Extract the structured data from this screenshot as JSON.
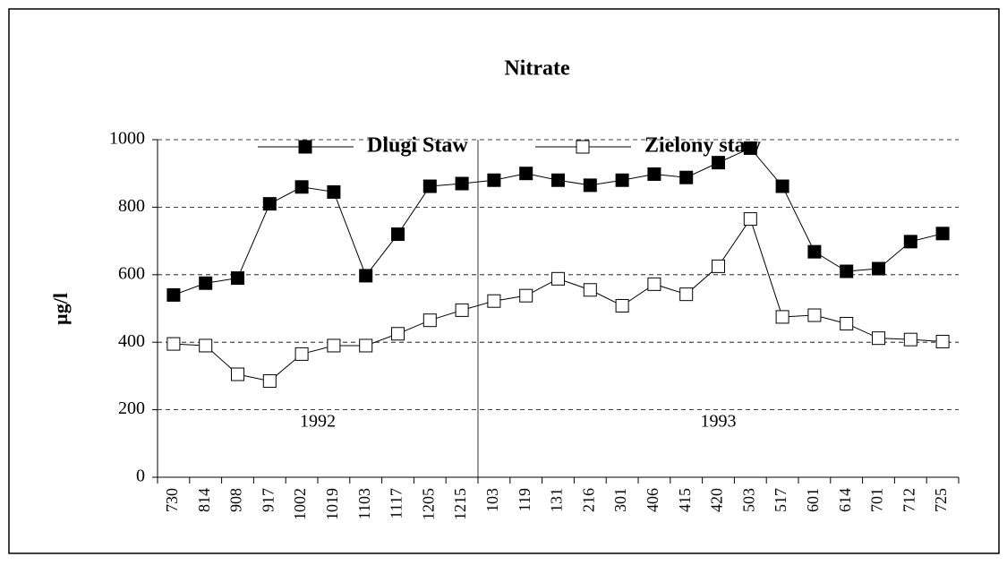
{
  "chart_data": {
    "type": "line",
    "title": "Nitrate",
    "y_label": "µg/l",
    "categories": [
      "730",
      "814",
      "908",
      "917",
      "1002",
      "1019",
      "1103",
      "1117",
      "1205",
      "1215",
      "103",
      "119",
      "131",
      "216",
      "301",
      "406",
      "415",
      "420",
      "503",
      "517",
      "601",
      "614",
      "701",
      "712",
      "725"
    ],
    "series": [
      {
        "name": "Dlugi Staw",
        "color": "#000000",
        "marker_fill": "#000000",
        "values": [
          540,
          575,
          590,
          810,
          860,
          845,
          597,
          720,
          862,
          870,
          880,
          900,
          880,
          865,
          880,
          898,
          888,
          932,
          975,
          862,
          668,
          610,
          618,
          698,
          722
        ]
      },
      {
        "name": "Zielony staw",
        "color": "#000000",
        "marker_fill": "#ffffff",
        "values": [
          395,
          390,
          305,
          285,
          365,
          390,
          390,
          425,
          465,
          495,
          522,
          538,
          588,
          555,
          508,
          572,
          542,
          625,
          765,
          475,
          480,
          455,
          412,
          408,
          402
        ]
      }
    ],
    "annotations": [
      "1992",
      "1993"
    ],
    "ylim": [
      0,
      1000
    ],
    "yticks": [
      0,
      200,
      400,
      600,
      800,
      1000
    ],
    "grid": true
  }
}
